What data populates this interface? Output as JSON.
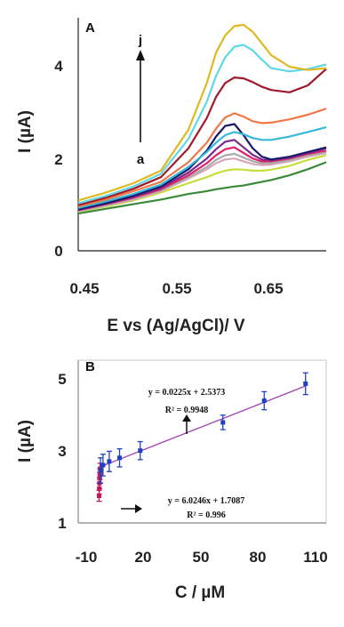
{
  "chart_data": [
    {
      "type": "line",
      "panel_label": "A",
      "xlabel": "E vs (Ag/AgCl)/ V",
      "ylabel": "I (µA)",
      "xlim": [
        0.45,
        0.72
      ],
      "ylim": [
        0,
        5
      ],
      "x_ticks": [
        "0.45",
        "0.55",
        "0.65"
      ],
      "y_ticks": [
        "0",
        "2",
        "4"
      ],
      "grid": false,
      "annotations": {
        "top": "j",
        "bottom": "a"
      },
      "x": [
        0.45,
        0.48,
        0.51,
        0.54,
        0.57,
        0.59,
        0.6,
        0.61,
        0.62,
        0.63,
        0.64,
        0.65,
        0.66,
        0.68,
        0.7,
        0.72
      ],
      "series": [
        {
          "color": "#3a8a3a",
          "values": [
            0.8,
            0.9,
            1.0,
            1.1,
            1.22,
            1.28,
            1.32,
            1.35,
            1.38,
            1.4,
            1.44,
            1.48,
            1.52,
            1.62,
            1.75,
            1.9
          ]
        },
        {
          "color": "#c8dd3a",
          "values": [
            0.84,
            0.95,
            1.08,
            1.25,
            1.45,
            1.58,
            1.66,
            1.72,
            1.75,
            1.74,
            1.72,
            1.72,
            1.74,
            1.82,
            1.95,
            2.05
          ]
        },
        {
          "color": "#d8a8b8",
          "values": [
            0.85,
            0.97,
            1.1,
            1.28,
            1.55,
            1.75,
            1.88,
            1.96,
            1.98,
            1.92,
            1.86,
            1.84,
            1.85,
            1.92,
            2.02,
            2.1
          ]
        },
        {
          "color": "#aaaaaa",
          "values": [
            0.86,
            0.98,
            1.12,
            1.3,
            1.58,
            1.8,
            1.95,
            2.05,
            2.08,
            2.0,
            1.92,
            1.88,
            1.88,
            1.95,
            2.05,
            2.12
          ]
        },
        {
          "color": "#e0206a",
          "values": [
            0.87,
            1.0,
            1.14,
            1.32,
            1.62,
            1.88,
            2.05,
            2.18,
            2.22,
            2.1,
            1.98,
            1.92,
            1.92,
            1.98,
            2.08,
            2.15
          ]
        },
        {
          "color": "#7a2a8a",
          "values": [
            0.88,
            1.01,
            1.16,
            1.35,
            1.68,
            1.98,
            2.18,
            2.34,
            2.38,
            2.22,
            2.06,
            1.96,
            1.94,
            2.0,
            2.1,
            2.2
          ]
        },
        {
          "color": "#1a1a6a",
          "values": [
            0.89,
            1.02,
            1.18,
            1.38,
            1.75,
            2.15,
            2.45,
            2.68,
            2.72,
            2.48,
            2.2,
            2.02,
            1.96,
            2.02,
            2.12,
            2.22
          ]
        },
        {
          "color": "#38b8d8",
          "values": [
            0.92,
            1.06,
            1.22,
            1.42,
            1.8,
            2.12,
            2.32,
            2.48,
            2.55,
            2.5,
            2.42,
            2.38,
            2.38,
            2.45,
            2.55,
            2.65
          ]
        },
        {
          "color": "#f07848",
          "values": [
            0.95,
            1.1,
            1.28,
            1.48,
            1.9,
            2.32,
            2.62,
            2.86,
            2.95,
            2.88,
            2.78,
            2.74,
            2.75,
            2.82,
            2.92,
            3.05
          ]
        },
        {
          "color": "#a01a2a",
          "values": [
            0.98,
            1.14,
            1.33,
            1.58,
            2.2,
            2.85,
            3.3,
            3.6,
            3.72,
            3.7,
            3.62,
            3.52,
            3.45,
            3.4,
            3.55,
            3.9
          ]
        },
        {
          "color": "#60d8e8",
          "values": [
            1.02,
            1.18,
            1.38,
            1.65,
            2.4,
            3.2,
            3.75,
            4.15,
            4.38,
            4.42,
            4.3,
            4.1,
            3.92,
            3.85,
            3.9,
            4.0
          ]
        },
        {
          "color": "#e0b820",
          "values": [
            1.08,
            1.25,
            1.45,
            1.72,
            2.6,
            3.6,
            4.25,
            4.62,
            4.82,
            4.85,
            4.7,
            4.45,
            4.2,
            3.95,
            3.88,
            3.92
          ]
        }
      ]
    },
    {
      "type": "scatter",
      "panel_label": "B",
      "xlabel": "C / µM",
      "ylabel": "I (µA)",
      "xlim": [
        -10,
        110
      ],
      "ylim": [
        1,
        5.5
      ],
      "x_ticks": [
        "-10",
        "20",
        "50",
        "80",
        "110"
      ],
      "y_ticks": [
        "1",
        "3",
        "5"
      ],
      "grid": false,
      "series": [
        {
          "color": "#c0185a",
          "x": [
            0.1,
            0.2,
            0.3,
            0.4,
            0.5,
            0.6
          ],
          "y": [
            1.75,
            1.95,
            2.1,
            2.25,
            2.35,
            2.5
          ],
          "err": [
            0.15,
            0.15,
            0.15,
            0.15,
            0.15,
            0.15
          ]
        },
        {
          "color": "#2040c0",
          "x": [
            0.8,
            2,
            5,
            10,
            20,
            60,
            80,
            100
          ],
          "y": [
            2.45,
            2.6,
            2.7,
            2.8,
            3.0,
            3.78,
            4.38,
            4.85
          ],
          "err": [
            0.35,
            0.3,
            0.28,
            0.25,
            0.25,
            0.2,
            0.25,
            0.3
          ]
        }
      ],
      "fit_line": {
        "color": "#a040b0",
        "slope": 0.0225,
        "intercept": 2.5373,
        "x_range": [
          0,
          100
        ]
      },
      "annotations": [
        {
          "text": "y = 0.0225x + 2.5373",
          "text2": "R² = 0.9948"
        },
        {
          "text": "y = 6.0246x + 1.7087",
          "text2": "R² = 0.996"
        }
      ]
    }
  ]
}
